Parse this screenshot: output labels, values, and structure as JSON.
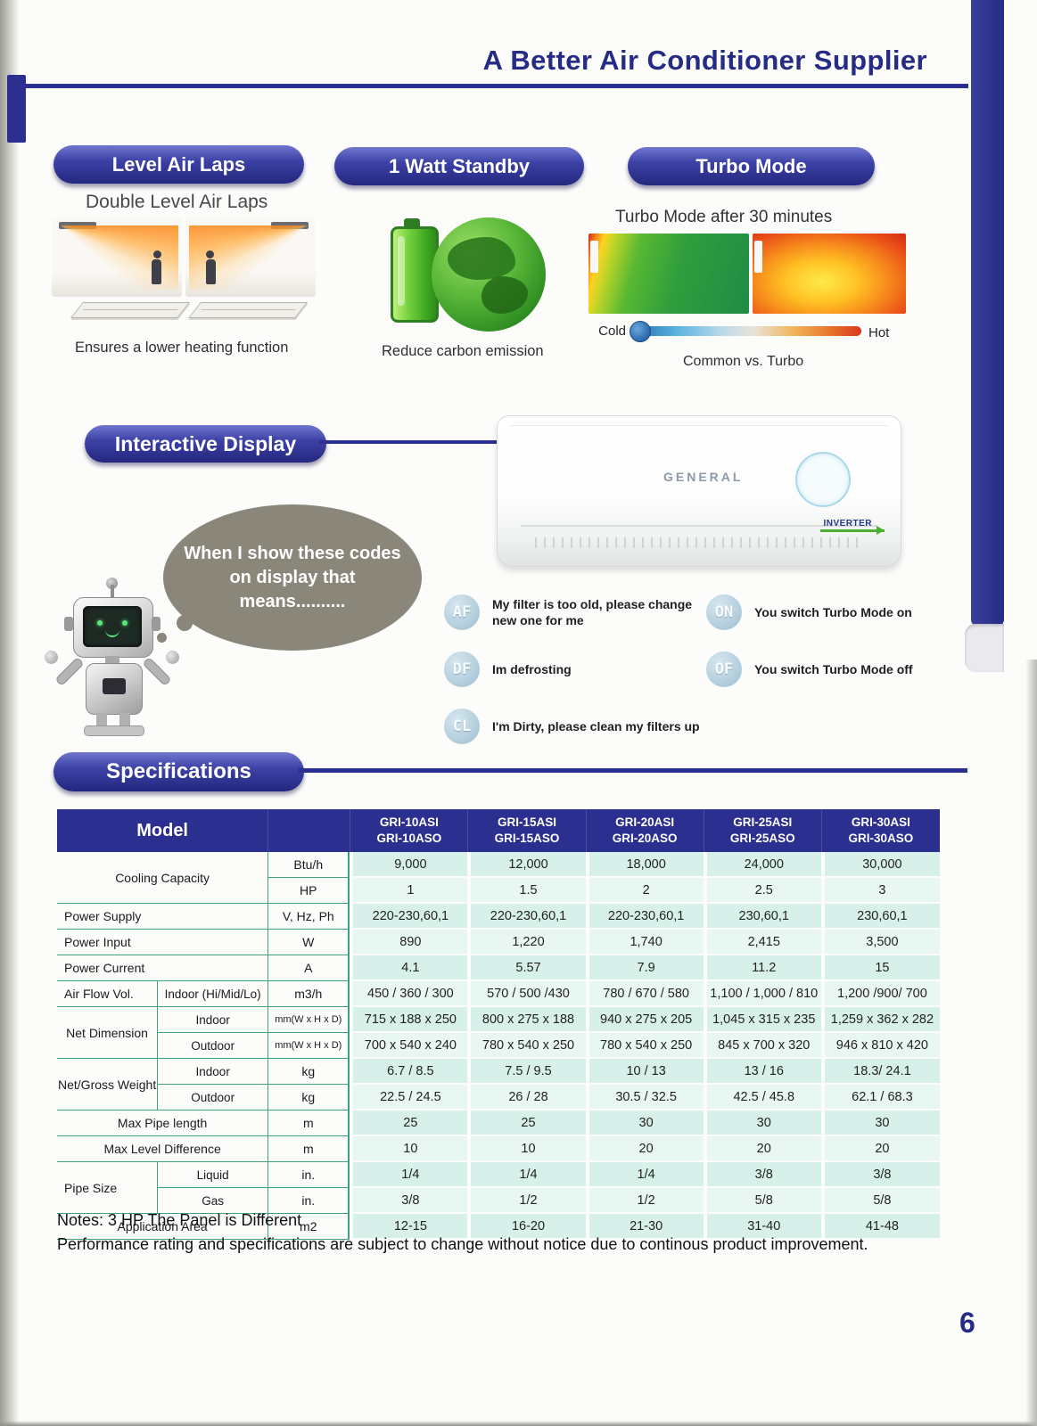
{
  "theme": {
    "accent": "#2b2f8f",
    "table_header": "#2b2f8f",
    "cell_teal": "#d8f0ea",
    "line_green": "#43a07c"
  },
  "header": {
    "title": "A Better Air Conditioner Supplier"
  },
  "features": {
    "level": {
      "pill": "Level Air Laps",
      "subtitle": "Double Level Air Laps",
      "caption": "Ensures a lower heating function"
    },
    "standby": {
      "pill": "1 Watt Standby",
      "caption": "Reduce carbon emission"
    },
    "turbo": {
      "pill": "Turbo Mode",
      "subtitle": "Turbo Mode after 30 minutes",
      "cold": "Cold",
      "hot": "Hot",
      "caption": "Common vs. Turbo"
    }
  },
  "interactive": {
    "pill": "Interactive Display",
    "bubble": "When I show these codes\non display that means..........",
    "ac_brand": "GENERAL",
    "ac_badge": "INVERTER",
    "codes_left": [
      {
        "code": "AF",
        "text": "My filter is too old, please change\nnew one for me"
      },
      {
        "code": "DF",
        "text": "Im defrosting"
      },
      {
        "code": "CL",
        "text": "I'm Dirty,  please clean my filters up"
      }
    ],
    "codes_right": [
      {
        "code": "ON",
        "text": "You switch  Turbo Mode on"
      },
      {
        "code": "OF",
        "text": "You switch  Turbo Mode off"
      }
    ]
  },
  "specs": {
    "pill": "Specifications",
    "model_header": "Model",
    "models": [
      {
        "indoor": "GRI-10ASI",
        "outdoor": "GRI-10ASO"
      },
      {
        "indoor": "GRI-15ASI",
        "outdoor": "GRI-15ASO"
      },
      {
        "indoor": "GRI-20ASI",
        "outdoor": "GRI-20ASO"
      },
      {
        "indoor": "GRI-25ASI",
        "outdoor": "GRI-25ASO"
      },
      {
        "indoor": "GRI-30ASI",
        "outdoor": "GRI-30ASO"
      }
    ],
    "rows": [
      {
        "group": "Cooling Capacity",
        "rowspan": 2,
        "colspan": 2,
        "unit": "Btu/h",
        "values": [
          "9,000",
          "12,000",
          "18,000",
          "24,000",
          "30,000"
        ]
      },
      {
        "unit": "HP",
        "values": [
          "1",
          "1.5",
          "2",
          "2.5",
          "3"
        ]
      },
      {
        "group": "Power Supply",
        "colspan": 2,
        "align": "left",
        "unit": "V, Hz, Ph",
        "values": [
          "220-230,60,1",
          "220-230,60,1",
          "220-230,60,1",
          "230,60,1",
          "230,60,1"
        ]
      },
      {
        "group": "Power Input",
        "colspan": 2,
        "align": "left",
        "unit": "W",
        "values": [
          "890",
          "1,220",
          "1,740",
          "2,415",
          "3,500"
        ]
      },
      {
        "group": "Power Current",
        "colspan": 2,
        "align": "left",
        "unit": "A",
        "values": [
          "4.1",
          "5.57",
          "7.9",
          "11.2",
          "15"
        ]
      },
      {
        "group": "Air Flow Vol.",
        "align": "left",
        "sub": "Indoor (Hi/Mid/Lo)",
        "unit": "m3/h",
        "values": [
          "450 / 360 / 300",
          "570 / 500 /430",
          "780 / 670 / 580",
          "1,100 / 1,000 / 810",
          "1,200 /900/ 700"
        ]
      },
      {
        "group": "Net Dimension",
        "rowspan": 2,
        "sub": "Indoor",
        "unit": "mm(W x H x D)",
        "values": [
          "715 x 188 x 250",
          "800 x 275 x 188",
          "940 x 275 x 205",
          "1,045 x 315 x 235",
          "1,259 x 362 x 282"
        ]
      },
      {
        "sub": "Outdoor",
        "unit": "mm(W x H x D)",
        "values": [
          "700 x 540 x 240",
          "780 x 540 x 250",
          "780 x 540 x 250",
          "845 x 700 x 320",
          "946 x 810 x 420"
        ]
      },
      {
        "group": "Net/Gross Weight",
        "rowspan": 2,
        "sub": "Indoor",
        "unit": "kg",
        "values": [
          "6.7 / 8.5",
          "7.5 / 9.5",
          "10 / 13",
          "13 / 16",
          "18.3/ 24.1"
        ]
      },
      {
        "sub": "Outdoor",
        "unit": "kg",
        "values": [
          "22.5 / 24.5",
          "26 / 28",
          "30.5 / 32.5",
          "42.5 / 45.8",
          "62.1 / 68.3"
        ]
      },
      {
        "group": "Max Pipe length",
        "colspan": 2,
        "unit": "m",
        "values": [
          "25",
          "25",
          "30",
          "30",
          "30"
        ]
      },
      {
        "group": "Max Level Difference",
        "colspan": 2,
        "unit": "m",
        "values": [
          "10",
          "10",
          "20",
          "20",
          "20"
        ]
      },
      {
        "group": "Pipe Size",
        "rowspan": 2,
        "align": "left",
        "sub": "Liquid",
        "unit": "in.",
        "values": [
          "1/4",
          "1/4",
          "1/4",
          "3/8",
          "3/8"
        ]
      },
      {
        "sub": "Gas",
        "unit": "in.",
        "values": [
          "3/8",
          "1/2",
          "1/2",
          "5/8",
          "5/8"
        ]
      },
      {
        "group": "Application Area",
        "colspan": 2,
        "unit": "m2",
        "values": [
          "12-15",
          "16-20",
          "21-30",
          "31-40",
          "41-48"
        ]
      }
    ]
  },
  "notes": [
    "Notes: 3 HP The Panel is Different",
    "Performance rating and specifications are subject to change without notice due to continous product improvement."
  ],
  "page_number": "6"
}
